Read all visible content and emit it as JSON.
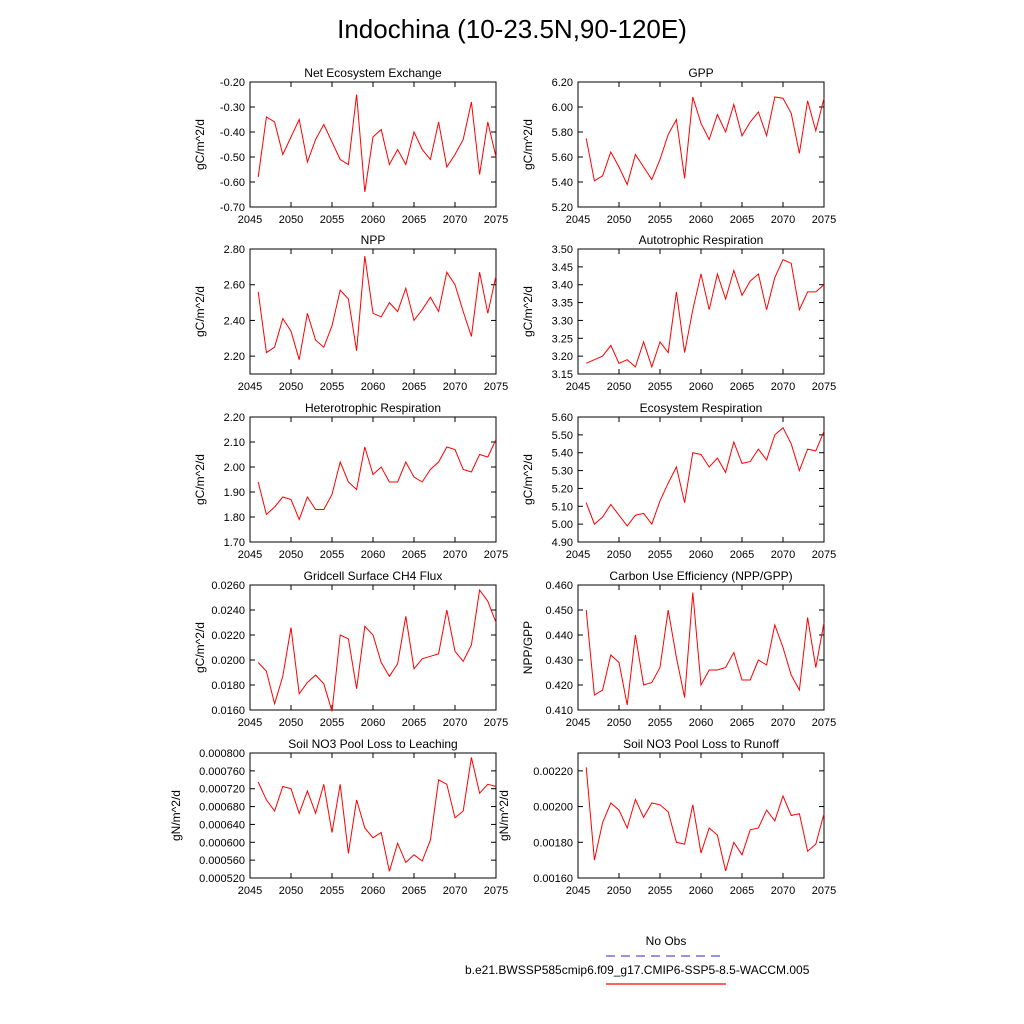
{
  "title": "Indochina (10-23.5N,90-120E)",
  "legend": {
    "obs_label": "No Obs",
    "obs_color": "#5555cc",
    "case_label": "b.e21.BWSSP585cmip6.f09_g17.CMIP6-SSP5-8.5-WACCM.005",
    "case_color": "#ff0000"
  },
  "chart_data": [
    {
      "type": "line",
      "title": "Net Ecosystem Exchange",
      "ylabel": "gC/m^2/d",
      "xlim": [
        2045,
        2075
      ],
      "ylim": [
        -0.7,
        -0.2
      ],
      "xticks": [
        2045,
        2050,
        2055,
        2060,
        2065,
        2070,
        2075
      ],
      "yticks": [
        "-0.70",
        "-0.60",
        "-0.50",
        "-0.40",
        "-0.30",
        "-0.20"
      ],
      "x": [
        2046,
        2047,
        2048,
        2049,
        2050,
        2051,
        2052,
        2053,
        2054,
        2055,
        2056,
        2057,
        2058,
        2059,
        2060,
        2061,
        2062,
        2063,
        2064,
        2065,
        2066,
        2067,
        2068,
        2069,
        2070,
        2071,
        2072,
        2073,
        2074,
        2075
      ],
      "series": [
        {
          "color": "#ff0000",
          "values": [
            -0.58,
            -0.34,
            -0.36,
            -0.49,
            -0.42,
            -0.35,
            -0.52,
            -0.43,
            -0.37,
            -0.44,
            -0.51,
            -0.53,
            -0.25,
            -0.64,
            -0.42,
            -0.39,
            -0.53,
            -0.47,
            -0.53,
            -0.4,
            -0.47,
            -0.51,
            -0.36,
            -0.54,
            -0.49,
            -0.43,
            -0.28,
            -0.57,
            -0.36,
            -0.5
          ]
        }
      ]
    },
    {
      "type": "line",
      "title": "GPP",
      "ylabel": "gC/m^2/d",
      "xlim": [
        2045,
        2075
      ],
      "ylim": [
        5.2,
        6.2
      ],
      "xticks": [
        2045,
        2050,
        2055,
        2060,
        2065,
        2070,
        2075
      ],
      "yticks": [
        "5.20",
        "5.40",
        "5.60",
        "5.80",
        "6.00",
        "6.20"
      ],
      "x": [
        2046,
        2047,
        2048,
        2049,
        2050,
        2051,
        2052,
        2053,
        2054,
        2055,
        2056,
        2057,
        2058,
        2059,
        2060,
        2061,
        2062,
        2063,
        2064,
        2065,
        2066,
        2067,
        2068,
        2069,
        2070,
        2071,
        2072,
        2073,
        2074,
        2075
      ],
      "series": [
        {
          "color": "#ff0000",
          "values": [
            5.75,
            5.41,
            5.45,
            5.64,
            5.52,
            5.38,
            5.62,
            5.52,
            5.42,
            5.58,
            5.78,
            5.9,
            5.43,
            6.08,
            5.87,
            5.74,
            5.94,
            5.8,
            6.02,
            5.77,
            5.88,
            5.96,
            5.77,
            6.08,
            6.07,
            5.95,
            5.63,
            6.05,
            5.81,
            6.07
          ]
        }
      ]
    },
    {
      "type": "line",
      "title": "NPP",
      "ylabel": "gC/m^2/d",
      "xlim": [
        2045,
        2075
      ],
      "ylim": [
        2.1,
        2.8
      ],
      "xticks": [
        2045,
        2050,
        2055,
        2060,
        2065,
        2070,
        2075
      ],
      "yticks": [
        "2.20",
        "2.40",
        "2.60",
        "2.80"
      ],
      "x": [
        2046,
        2047,
        2048,
        2049,
        2050,
        2051,
        2052,
        2053,
        2054,
        2055,
        2056,
        2057,
        2058,
        2059,
        2060,
        2061,
        2062,
        2063,
        2064,
        2065,
        2066,
        2067,
        2068,
        2069,
        2070,
        2071,
        2072,
        2073,
        2074,
        2075
      ],
      "series": [
        {
          "color": "#ff0000",
          "values": [
            2.56,
            2.22,
            2.25,
            2.41,
            2.34,
            2.18,
            2.44,
            2.29,
            2.25,
            2.37,
            2.57,
            2.52,
            2.23,
            2.76,
            2.44,
            2.42,
            2.5,
            2.45,
            2.58,
            2.4,
            2.46,
            2.53,
            2.45,
            2.67,
            2.6,
            2.45,
            2.31,
            2.67,
            2.44,
            2.65
          ]
        }
      ]
    },
    {
      "type": "line",
      "title": "Autotrophic Respiration",
      "ylabel": "gC/m^2/d",
      "xlim": [
        2045,
        2075
      ],
      "ylim": [
        3.15,
        3.5
      ],
      "xticks": [
        2045,
        2050,
        2055,
        2060,
        2065,
        2070,
        2075
      ],
      "yticks": [
        "3.15",
        "3.20",
        "3.25",
        "3.30",
        "3.35",
        "3.40",
        "3.45",
        "3.50"
      ],
      "x": [
        2046,
        2047,
        2048,
        2049,
        2050,
        2051,
        2052,
        2053,
        2054,
        2055,
        2056,
        2057,
        2058,
        2059,
        2060,
        2061,
        2062,
        2063,
        2064,
        2065,
        2066,
        2067,
        2068,
        2069,
        2070,
        2071,
        2072,
        2073,
        2074,
        2075
      ],
      "series": [
        {
          "color": "#ff0000",
          "values": [
            3.18,
            3.19,
            3.2,
            3.23,
            3.18,
            3.19,
            3.17,
            3.24,
            3.17,
            3.24,
            3.21,
            3.38,
            3.21,
            3.33,
            3.43,
            3.33,
            3.43,
            3.36,
            3.44,
            3.37,
            3.41,
            3.43,
            3.33,
            3.42,
            3.47,
            3.46,
            3.33,
            3.38,
            3.38,
            3.4
          ]
        }
      ]
    },
    {
      "type": "line",
      "title": "Heterotrophic Respiration",
      "ylabel": "gC/m^2/d",
      "xlim": [
        2045,
        2075
      ],
      "ylim": [
        1.7,
        2.2
      ],
      "xticks": [
        2045,
        2050,
        2055,
        2060,
        2065,
        2070,
        2075
      ],
      "yticks": [
        "1.70",
        "1.80",
        "1.90",
        "2.00",
        "2.10",
        "2.20"
      ],
      "x": [
        2046,
        2047,
        2048,
        2049,
        2050,
        2051,
        2052,
        2053,
        2054,
        2055,
        2056,
        2057,
        2058,
        2059,
        2060,
        2061,
        2062,
        2063,
        2064,
        2065,
        2066,
        2067,
        2068,
        2069,
        2070,
        2071,
        2072,
        2073,
        2074,
        2075
      ],
      "series": [
        {
          "color": "#ff0000",
          "values": [
            1.94,
            1.81,
            1.84,
            1.88,
            1.87,
            1.79,
            1.88,
            1.83,
            1.83,
            1.89,
            2.02,
            1.94,
            1.91,
            2.08,
            1.97,
            2.0,
            1.94,
            1.94,
            2.02,
            1.96,
            1.94,
            1.99,
            2.02,
            2.08,
            2.07,
            1.99,
            1.98,
            2.05,
            2.04,
            2.11
          ]
        }
      ]
    },
    {
      "type": "line",
      "title": "Ecosystem Respiration",
      "ylabel": "gC/m^2/d",
      "xlim": [
        2045,
        2075
      ],
      "ylim": [
        4.9,
        5.6
      ],
      "xticks": [
        2045,
        2050,
        2055,
        2060,
        2065,
        2070,
        2075
      ],
      "yticks": [
        "4.90",
        "5.00",
        "5.10",
        "5.20",
        "5.30",
        "5.40",
        "5.50",
        "5.60"
      ],
      "x": [
        2046,
        2047,
        2048,
        2049,
        2050,
        2051,
        2052,
        2053,
        2054,
        2055,
        2056,
        2057,
        2058,
        2059,
        2060,
        2061,
        2062,
        2063,
        2064,
        2065,
        2066,
        2067,
        2068,
        2069,
        2070,
        2071,
        2072,
        2073,
        2074,
        2075
      ],
      "series": [
        {
          "color": "#ff0000",
          "values": [
            5.12,
            5.0,
            5.04,
            5.11,
            5.05,
            4.99,
            5.05,
            5.06,
            5.0,
            5.13,
            5.23,
            5.32,
            5.12,
            5.4,
            5.39,
            5.32,
            5.37,
            5.29,
            5.46,
            5.34,
            5.35,
            5.42,
            5.36,
            5.5,
            5.54,
            5.45,
            5.3,
            5.42,
            5.41,
            5.52
          ]
        }
      ]
    },
    {
      "type": "line",
      "title": "Gridcell Surface CH4 Flux",
      "ylabel": "gC/m^2/d",
      "xlim": [
        2045,
        2075
      ],
      "ylim": [
        0.016,
        0.026
      ],
      "xticks": [
        2045,
        2050,
        2055,
        2060,
        2065,
        2070,
        2075
      ],
      "yticks": [
        "0.0160",
        "0.0180",
        "0.0200",
        "0.0220",
        "0.0240",
        "0.0260"
      ],
      "x": [
        2046,
        2047,
        2048,
        2049,
        2050,
        2051,
        2052,
        2053,
        2054,
        2055,
        2056,
        2057,
        2058,
        2059,
        2060,
        2061,
        2062,
        2063,
        2064,
        2065,
        2066,
        2067,
        2068,
        2069,
        2070,
        2071,
        2072,
        2073,
        2074,
        2075
      ],
      "series": [
        {
          "color": "#ff0000",
          "values": [
            0.0198,
            0.0191,
            0.0165,
            0.0187,
            0.0226,
            0.0173,
            0.0182,
            0.0188,
            0.0181,
            0.0159,
            0.022,
            0.0217,
            0.0177,
            0.0227,
            0.022,
            0.0198,
            0.0187,
            0.0197,
            0.0235,
            0.0193,
            0.0201,
            0.0203,
            0.0205,
            0.024,
            0.0207,
            0.0199,
            0.0212,
            0.0256,
            0.0247,
            0.023
          ]
        }
      ]
    },
    {
      "type": "line",
      "title": "Carbon Use Efficiency (NPP/GPP)",
      "ylabel": "NPP/GPP",
      "xlim": [
        2045,
        2075
      ],
      "ylim": [
        0.41,
        0.46
      ],
      "xticks": [
        2045,
        2050,
        2055,
        2060,
        2065,
        2070,
        2075
      ],
      "yticks": [
        "0.410",
        "0.420",
        "0.430",
        "0.440",
        "0.450",
        "0.460"
      ],
      "x": [
        2046,
        2047,
        2048,
        2049,
        2050,
        2051,
        2052,
        2053,
        2054,
        2055,
        2056,
        2057,
        2058,
        2059,
        2060,
        2061,
        2062,
        2063,
        2064,
        2065,
        2066,
        2067,
        2068,
        2069,
        2070,
        2071,
        2072,
        2073,
        2074,
        2075
      ],
      "series": [
        {
          "color": "#ff0000",
          "values": [
            0.45,
            0.416,
            0.418,
            0.432,
            0.429,
            0.412,
            0.44,
            0.42,
            0.421,
            0.427,
            0.45,
            0.431,
            0.415,
            0.457,
            0.42,
            0.426,
            0.426,
            0.427,
            0.433,
            0.422,
            0.422,
            0.43,
            0.428,
            0.444,
            0.435,
            0.424,
            0.418,
            0.447,
            0.427,
            0.445
          ]
        }
      ]
    },
    {
      "type": "line",
      "title": "Soil NO3 Pool Loss to Leaching",
      "ylabel": "gN/m^2/d",
      "xlim": [
        2045,
        2075
      ],
      "ylim": [
        0.00052,
        0.0008
      ],
      "xticks": [
        2045,
        2050,
        2055,
        2060,
        2065,
        2070,
        2075
      ],
      "yticks": [
        "0.000520",
        "0.000560",
        "0.000600",
        "0.000640",
        "0.000680",
        "0.000720",
        "0.000760",
        "0.000800"
      ],
      "x": [
        2046,
        2047,
        2048,
        2049,
        2050,
        2051,
        2052,
        2053,
        2054,
        2055,
        2056,
        2057,
        2058,
        2059,
        2060,
        2061,
        2062,
        2063,
        2064,
        2065,
        2066,
        2067,
        2068,
        2069,
        2070,
        2071,
        2072,
        2073,
        2074,
        2075
      ],
      "series": [
        {
          "color": "#ff0000",
          "values": [
            0.000735,
            0.000695,
            0.00067,
            0.000725,
            0.00072,
            0.000665,
            0.000715,
            0.000665,
            0.00073,
            0.000622,
            0.00073,
            0.000575,
            0.000695,
            0.000632,
            0.00061,
            0.000622,
            0.000535,
            0.000598,
            0.000555,
            0.000572,
            0.000558,
            0.000605,
            0.00074,
            0.00073,
            0.000655,
            0.00067,
            0.00079,
            0.00071,
            0.00073,
            0.000725
          ]
        }
      ]
    },
    {
      "type": "line",
      "title": "Soil NO3 Pool Loss to Runoff",
      "ylabel": "gN/m^2/d",
      "xlim": [
        2045,
        2075
      ],
      "ylim": [
        0.0016,
        0.0023
      ],
      "xticks": [
        2045,
        2050,
        2055,
        2060,
        2065,
        2070,
        2075
      ],
      "yticks": [
        "0.00160",
        "0.00180",
        "0.00200",
        "0.00220"
      ],
      "x": [
        2046,
        2047,
        2048,
        2049,
        2050,
        2051,
        2052,
        2053,
        2054,
        2055,
        2056,
        2057,
        2058,
        2059,
        2060,
        2061,
        2062,
        2063,
        2064,
        2065,
        2066,
        2067,
        2068,
        2069,
        2070,
        2071,
        2072,
        2073,
        2074,
        2075
      ],
      "series": [
        {
          "color": "#ff0000",
          "values": [
            0.00222,
            0.0017,
            0.00191,
            0.00202,
            0.00198,
            0.00188,
            0.00204,
            0.00194,
            0.00202,
            0.00201,
            0.00197,
            0.0018,
            0.00179,
            0.00201,
            0.00174,
            0.00188,
            0.00184,
            0.00164,
            0.0018,
            0.00173,
            0.00187,
            0.00188,
            0.00198,
            0.00192,
            0.00206,
            0.00195,
            0.00196,
            0.00175,
            0.00179,
            0.00196
          ]
        }
      ]
    }
  ]
}
